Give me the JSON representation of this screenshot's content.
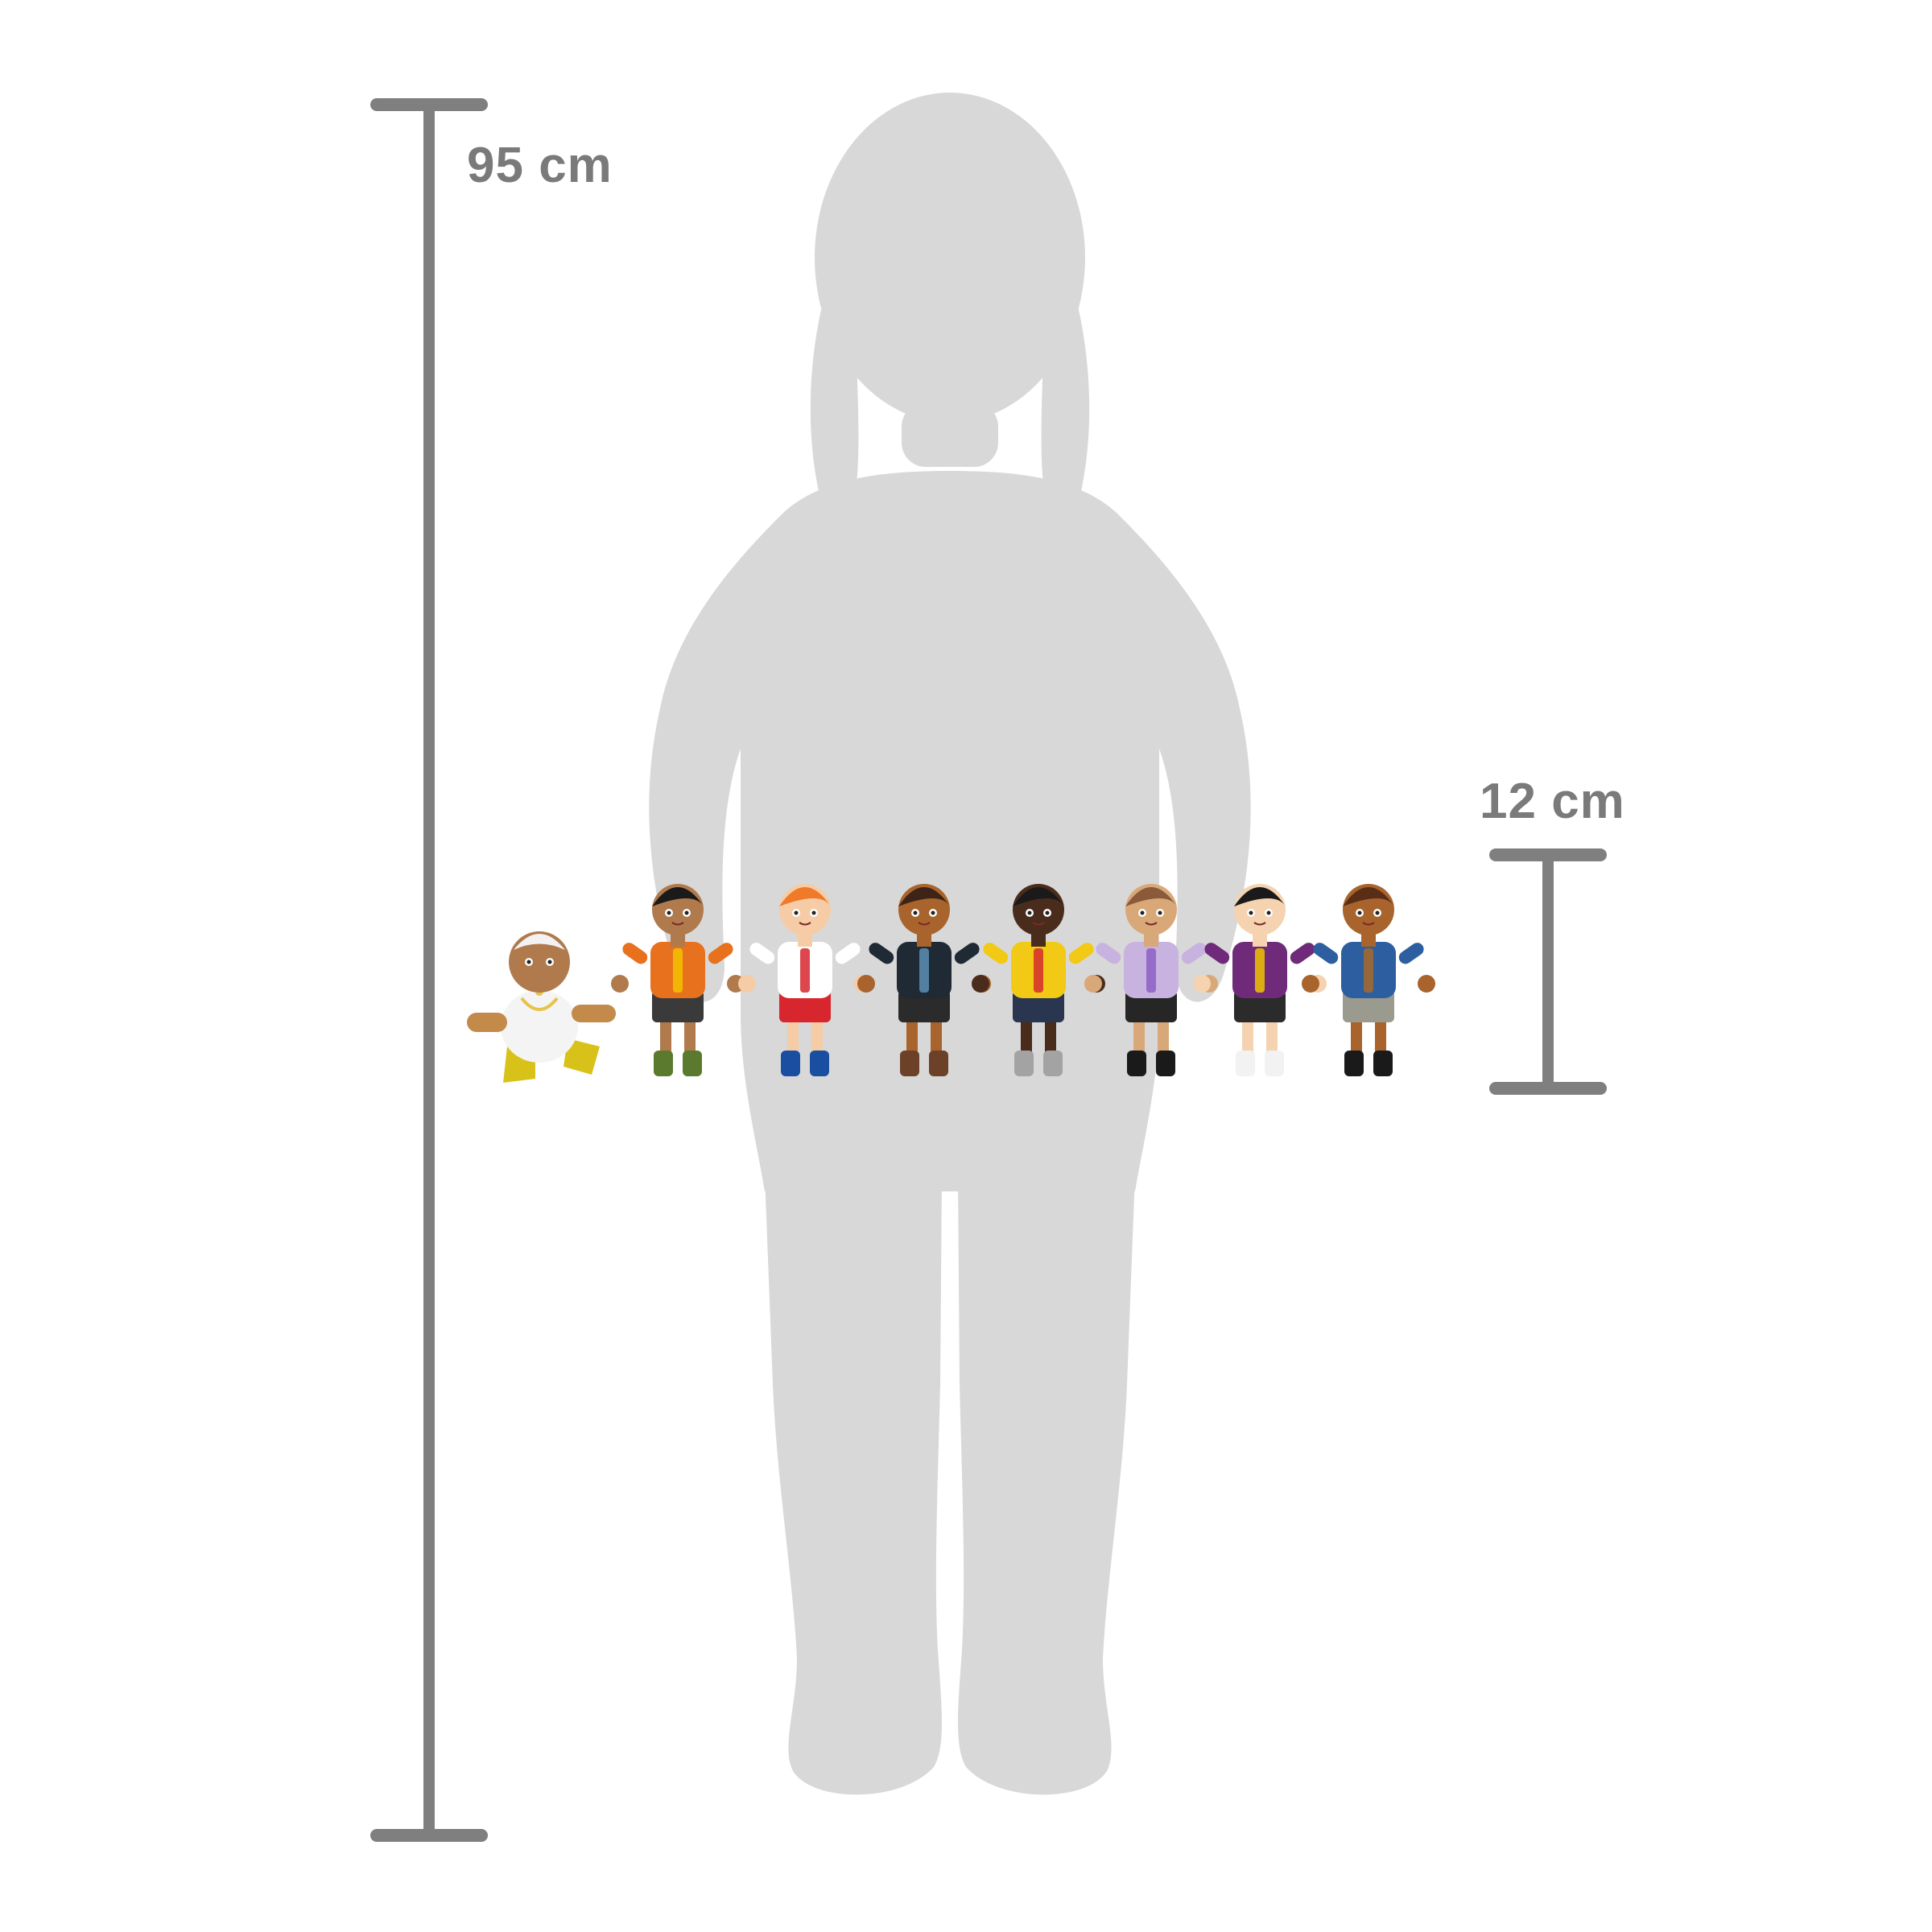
{
  "measurements": {
    "child_height_label": "95 cm",
    "figure_height_label": "12 cm"
  },
  "colors": {
    "silhouette": "#d8d8d8",
    "scale_bar": "#7f7f7f",
    "label_text": "#7a7a7a",
    "background": "#ffffff"
  },
  "figures": [
    {
      "name": "baby",
      "skin": "#b07a4d",
      "hair": "#f2f2f2",
      "top": "#f4f4f4",
      "bottom": "#f4f4f4",
      "shoes": "#d8c21a",
      "accent": "#e6c34a"
    },
    {
      "name": "child-rainbow-shirt",
      "skin": "#b07a4d",
      "hair": "#1a1a1a",
      "top": "#e8711e",
      "bottom": "#3a3a3a",
      "shoes": "#5b7a2e",
      "accent": "#f2c200"
    },
    {
      "name": "ginger-girl",
      "skin": "#f5cca6",
      "hair": "#ee7a2a",
      "top": "#ffffff",
      "bottom": "#d7262d",
      "shoes": "#1a4ea0",
      "accent": "#d7262d"
    },
    {
      "name": "woman-denim-jacket",
      "skin": "#a8642c",
      "hair": "#3d2416",
      "top": "#1f2a35",
      "bottom": "#2b2b2b",
      "shoes": "#6d4128",
      "accent": "#5a8fb4"
    },
    {
      "name": "girl-polka-dot",
      "skin": "#4a2c1c",
      "hair": "#1a1a1a",
      "top": "#f2c914",
      "bottom": "#2a3550",
      "shoes": "#a3a3a3",
      "accent": "#d52c2c"
    },
    {
      "name": "grandma-lilac",
      "skin": "#d9a879",
      "hair": "#8a5a3a",
      "top": "#c8b2e0",
      "bottom": "#262626",
      "shoes": "#1a1a1a",
      "accent": "#8d5fc4"
    },
    {
      "name": "teen-purple",
      "skin": "#f5d3b1",
      "hair": "#1a1a1a",
      "top": "#6f2b79",
      "bottom": "#2b2b2b",
      "shoes": "#f2f2f2",
      "accent": "#f0c400"
    },
    {
      "name": "boy-blue-sweater",
      "skin": "#a8642c",
      "hair": "#5a2d16",
      "top": "#2d5fa0",
      "bottom": "#9a9a8e",
      "shoes": "#1a1a1a",
      "accent": "#a86a2a"
    }
  ]
}
